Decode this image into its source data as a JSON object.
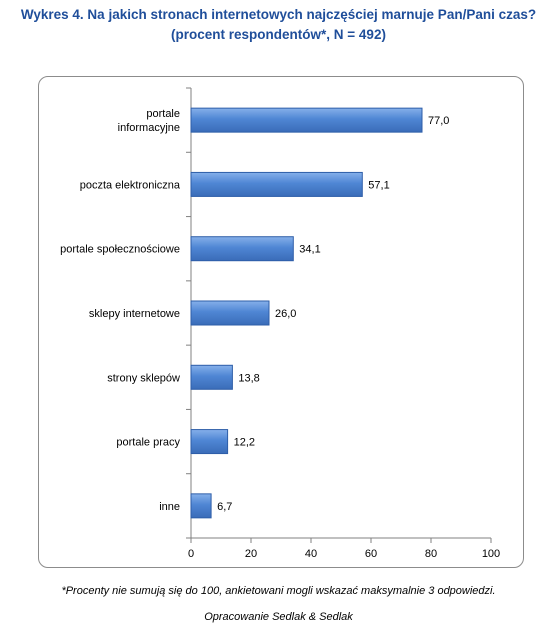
{
  "title_line1": "Wykres 4. Na jakich stronach internetowych najczęściej marnuje Pan/Pani czas?",
  "title_line2": "(procent respondentów*, N = 492)",
  "footnote": "*Procenty nie sumują się do 100, ankietowani mogli wskazać maksymalnie 3 odpowiedzi.",
  "source": "Opracowanie Sedlak & Sedlak",
  "chart_data": {
    "type": "bar",
    "orientation": "horizontal",
    "title": "Wykres 4. Na jakich stronach internetowych najczęściej marnuje Pan/Pani czas?",
    "subtitle": "(procent respondentów*, N = 492)",
    "categories": [
      [
        "portale",
        "informacyjne"
      ],
      [
        "poczta elektroniczna"
      ],
      [
        "portale społecznościowe"
      ],
      [
        "sklepy internetowe"
      ],
      [
        "strony sklepów"
      ],
      [
        "portale pracy"
      ],
      [
        "inne"
      ]
    ],
    "values": [
      77.0,
      57.1,
      34.1,
      26.0,
      13.8,
      12.2,
      6.7
    ],
    "value_labels": [
      "77,0",
      "57,1",
      "34,1",
      "26,0",
      "13,8",
      "12,2",
      "6,7"
    ],
    "xlim": [
      0,
      100
    ],
    "ticks": [
      0,
      20,
      40,
      60,
      80,
      100
    ],
    "grid": false,
    "legend": "none",
    "bar_color": "#4f86d4",
    "bar_edge_color": "#2e5ea8"
  }
}
